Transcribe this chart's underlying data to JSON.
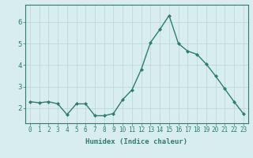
{
  "x": [
    0,
    1,
    2,
    3,
    4,
    5,
    6,
    7,
    8,
    9,
    10,
    11,
    12,
    13,
    14,
    15,
    16,
    17,
    18,
    19,
    20,
    21,
    22,
    23
  ],
  "y": [
    2.3,
    2.25,
    2.3,
    2.2,
    1.7,
    2.2,
    2.2,
    1.65,
    1.65,
    1.75,
    2.4,
    2.85,
    3.8,
    5.05,
    5.65,
    6.3,
    5.0,
    4.65,
    4.5,
    4.05,
    3.5,
    2.9,
    2.3,
    1.75
  ],
  "line_color": "#2e7d6e",
  "marker": "D",
  "marker_size": 2.0,
  "xlabel": "Humidex (Indice chaleur)",
  "xlim": [
    -0.5,
    23.5
  ],
  "ylim": [
    1.3,
    6.8
  ],
  "yticks": [
    2,
    3,
    4,
    5,
    6
  ],
  "xtick_labels": [
    "0",
    "1",
    "2",
    "3",
    "4",
    "5",
    "6",
    "7",
    "8",
    "9",
    "10",
    "11",
    "12",
    "13",
    "14",
    "15",
    "16",
    "17",
    "18",
    "19",
    "20",
    "21",
    "22",
    "23"
  ],
  "bg_color": "#d8eeee",
  "grid_color": "#c0d8d8",
  "tick_color": "#2e7d6e",
  "label_color": "#2e7d6e",
  "font_family": "monospace",
  "linewidth": 1.0,
  "xlabel_fontsize": 6.5,
  "ytick_fontsize": 6.5,
  "xtick_fontsize": 5.5
}
